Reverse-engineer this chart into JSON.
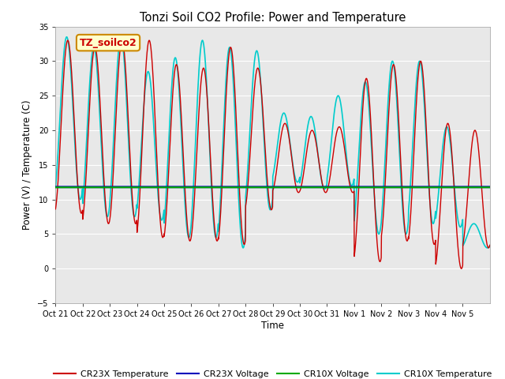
{
  "title": "Tonzi Soil CO2 Profile: Power and Temperature",
  "ylabel": "Power (V) / Temperature (C)",
  "xlabel": "Time",
  "ylim": [
    -5,
    35
  ],
  "yticks": [
    -5,
    0,
    5,
    10,
    15,
    20,
    25,
    30,
    35
  ],
  "xtick_labels": [
    "Oct 21",
    "Oct 22",
    "Oct 23",
    "Oct 24",
    "Oct 25",
    "Oct 26",
    "Oct 27",
    "Oct 28",
    "Oct 29",
    "Oct 30",
    "Oct 31",
    "Nov 1",
    "Nov 2",
    "Nov 3",
    "Nov 4",
    "Nov 5"
  ],
  "bg_color": "#e8e8e8",
  "cr23x_voltage_value": 11.8,
  "cr10x_voltage_value": 11.75,
  "cr23x_temp_color": "#cc0000",
  "cr23x_voltage_color": "#0000bb",
  "cr10x_voltage_color": "#00aa00",
  "cr10x_temp_color": "#00cccc",
  "legend_label_cr23x_temp": "CR23X Temperature",
  "legend_label_cr23x_volt": "CR23X Voltage",
  "legend_label_cr10x_volt": "CR10X Voltage",
  "legend_label_cr10x_temp": "CR10X Temperature",
  "annotation_text": "TZ_soilco2",
  "annotation_bg": "#ffffcc",
  "annotation_border": "#cc8800",
  "annotation_text_color": "#cc0000",
  "peaks_cr23x": [
    33.0,
    32.0,
    33.0,
    33.0,
    29.5,
    29.0,
    32.0,
    29.0,
    21.0,
    20.0,
    20.5,
    27.5,
    29.5,
    30.0,
    21.0,
    20.0
  ],
  "troughs_cr23x": [
    8.0,
    6.5,
    6.5,
    4.5,
    4.0,
    4.0,
    3.5,
    8.5,
    11.0,
    11.0,
    11.0,
    1.0,
    4.0,
    3.5,
    0.0,
    3.0
  ],
  "peaks_cr10x": [
    33.5,
    32.0,
    33.5,
    28.5,
    30.5,
    33.0,
    32.0,
    31.5,
    22.5,
    22.0,
    25.0,
    27.0,
    30.0,
    30.0,
    20.5,
    6.5
  ],
  "troughs_cr10x": [
    10.0,
    7.5,
    7.5,
    7.0,
    4.5,
    4.5,
    3.0,
    8.5,
    12.5,
    11.5,
    12.0,
    5.0,
    5.0,
    6.5,
    6.0,
    3.0
  ]
}
